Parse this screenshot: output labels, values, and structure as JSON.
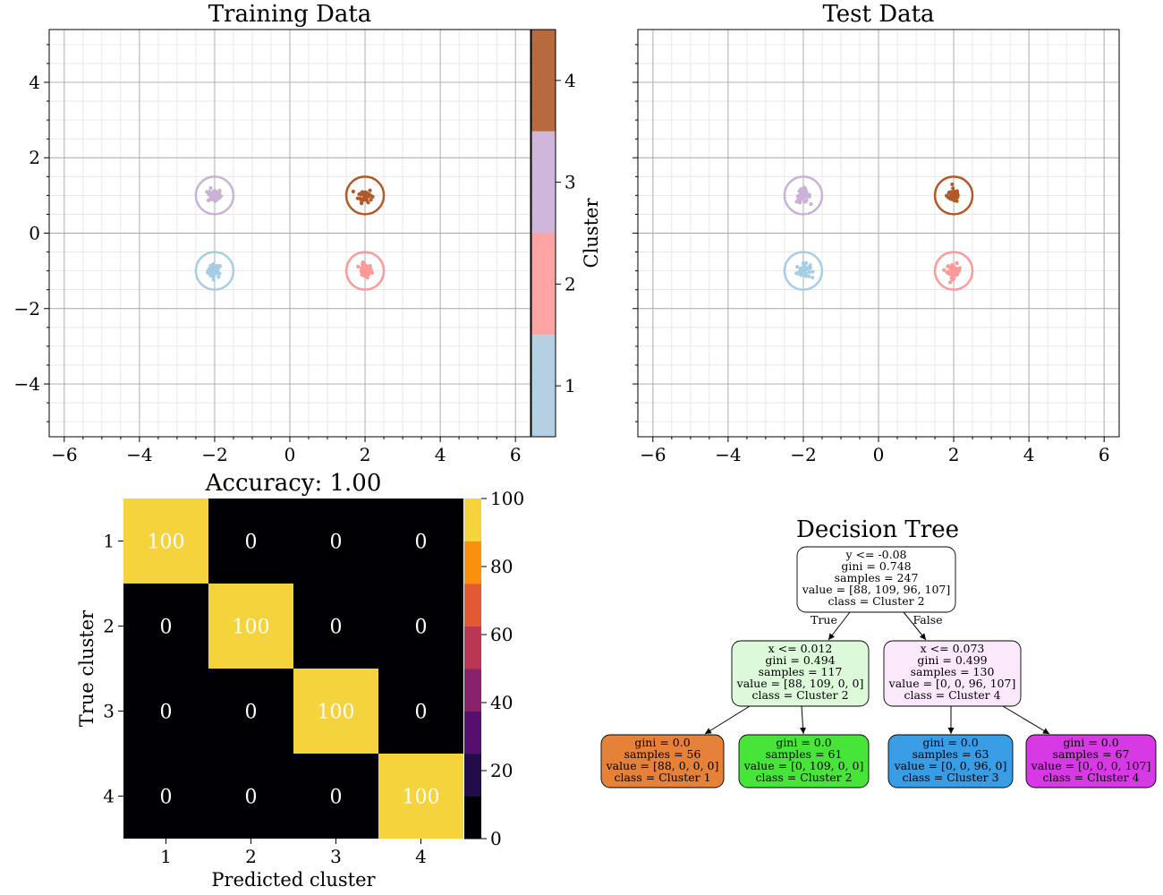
{
  "chart_data": [
    {
      "type": "scatter",
      "title": "Training Data",
      "xlim": [
        -6.4,
        6.4
      ],
      "ylim": [
        -5.4,
        5.4
      ],
      "xticks": [
        -6,
        -4,
        -2,
        0,
        2,
        4,
        6
      ],
      "yticks": [
        -4,
        -2,
        0,
        2,
        4
      ],
      "grid": true,
      "clusters": [
        {
          "name": "1",
          "center": [
            -2,
            -1
          ],
          "color": "#a6cee3"
        },
        {
          "name": "2",
          "center": [
            2,
            -1
          ],
          "color": "#fb9a99"
        },
        {
          "name": "3",
          "center": [
            -2,
            1
          ],
          "color": "#cab2d6"
        },
        {
          "name": "4",
          "center": [
            2,
            1
          ],
          "color": "#b15928"
        }
      ],
      "colorbar": {
        "label": "Cluster",
        "ticks": [
          "1",
          "2",
          "3",
          "4"
        ],
        "colors": [
          "#b3d1e3",
          "#fca3a3",
          "#cfb7dc",
          "#b86a3f"
        ]
      }
    },
    {
      "type": "scatter",
      "title": "Test Data",
      "xlim": [
        -6.4,
        6.4
      ],
      "ylim": [
        -5.4,
        5.4
      ],
      "xticks": [
        -6,
        -4,
        -2,
        0,
        2,
        4,
        6
      ],
      "grid": true,
      "clusters": [
        {
          "name": "1",
          "center": [
            -2,
            -1
          ],
          "color": "#a6cee3"
        },
        {
          "name": "2",
          "center": [
            2,
            -1
          ],
          "color": "#fb9a99"
        },
        {
          "name": "3",
          "center": [
            -2,
            1
          ],
          "color": "#cab2d6"
        },
        {
          "name": "4",
          "center": [
            2,
            1
          ],
          "color": "#b15928"
        }
      ]
    },
    {
      "type": "heatmap",
      "title": "Accuracy: 1.00",
      "xlabel": "Predicted cluster",
      "ylabel": "True cluster",
      "categories": [
        "1",
        "2",
        "3",
        "4"
      ],
      "values": [
        [
          100,
          0,
          0,
          0
        ],
        [
          0,
          100,
          0,
          0
        ],
        [
          0,
          0,
          100,
          0
        ],
        [
          0,
          0,
          0,
          100
        ]
      ],
      "colorbar": {
        "ticks": [
          0,
          20,
          40,
          60,
          80,
          100
        ],
        "range": [
          0,
          100
        ],
        "colors": [
          "#000004",
          "#1f0c48",
          "#550f6d",
          "#88226a",
          "#ba3655",
          "#e35933",
          "#f9900e",
          "#f5d33d"
        ]
      }
    }
  ],
  "tree": {
    "title": "Decision Tree",
    "edge_true": "True",
    "edge_false": "False",
    "nodes": [
      {
        "lines": [
          "y <= -0.08",
          "gini = 0.748",
          "samples = 247",
          "value = [88, 109, 96, 107]",
          "class = Cluster 2"
        ],
        "fill": "#ffffff"
      },
      {
        "lines": [
          "x <= 0.012",
          "gini = 0.494",
          "samples = 117",
          "value = [88, 109, 0, 0]",
          "class = Cluster 2"
        ],
        "fill": "#dcf9da"
      },
      {
        "lines": [
          "x <= 0.073",
          "gini = 0.499",
          "samples = 130",
          "value = [0, 0, 96, 107]",
          "class = Cluster 4"
        ],
        "fill": "#fbe8fb"
      },
      {
        "lines": [
          "gini = 0.0",
          "samples = 56",
          "value = [88, 0, 0, 0]",
          "class = Cluster 1"
        ],
        "fill": "#e58139"
      },
      {
        "lines": [
          "gini = 0.0",
          "samples = 61",
          "value = [0, 109, 0, 0]",
          "class = Cluster 2"
        ],
        "fill": "#47e539"
      },
      {
        "lines": [
          "gini = 0.0",
          "samples = 63",
          "value = [0, 0, 96, 0]",
          "class = Cluster 3"
        ],
        "fill": "#399de5"
      },
      {
        "lines": [
          "gini = 0.0",
          "samples = 67",
          "value = [0, 0, 0, 107]",
          "class = Cluster 4"
        ],
        "fill": "#d739e5"
      }
    ]
  }
}
